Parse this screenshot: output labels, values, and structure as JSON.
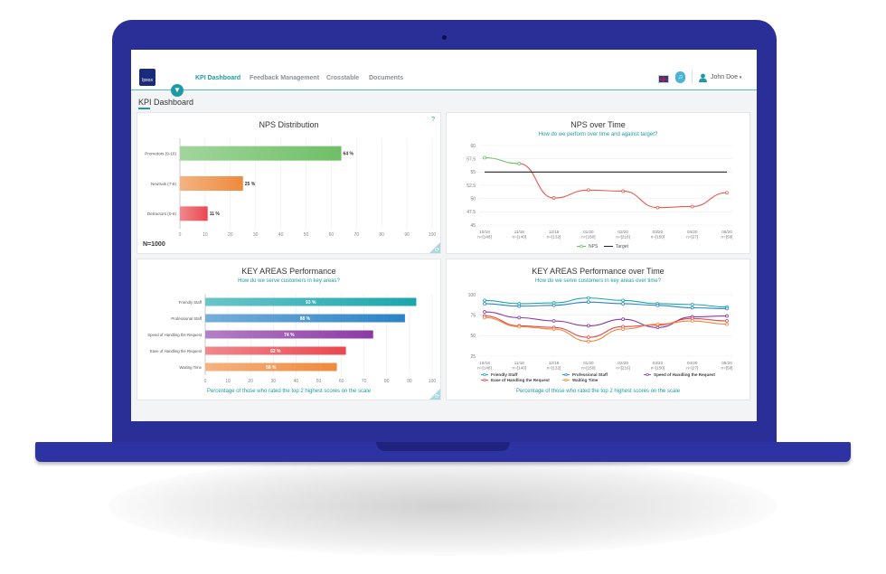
{
  "app": {
    "logo_text": "Ipsos"
  },
  "nav": {
    "items": [
      {
        "label": "KPI Dashboard",
        "active": true
      },
      {
        "label": "Feedback Management",
        "active": false
      },
      {
        "label": "Crosstable",
        "active": false
      },
      {
        "label": "Documents",
        "active": false
      }
    ]
  },
  "header": {
    "user_name": "John Doe",
    "user_caret": "▾",
    "flag_icon": "uk-flag-icon",
    "notification_icon": "bell-icon",
    "notification_glyph": "♫"
  },
  "page": {
    "title": "KPI Dashboard",
    "filter_icon": "filter-icon",
    "filter_glyph": "▼"
  },
  "colors": {
    "accent": "#1e9aa6",
    "laptop": "#2a2f97"
  },
  "panels": {
    "nps_distribution": {
      "title": "NPS Distribution",
      "help": "?",
      "sample": "N=1000"
    },
    "nps_over_time": {
      "title": "NPS over Time",
      "subtitle": "How do we perform over time and against target?"
    },
    "key_areas": {
      "title": "KEY AREAS Performance",
      "subtitle": "How do we serve customers in key areas?",
      "footer": "Percentage of those who rated the top 2 highest scores on the scale"
    },
    "key_areas_time": {
      "title": "KEY AREAS Performance over Time",
      "subtitle": "How do we serve customers in key areas over time?",
      "footer": "Percentage of those who rated the top 2 highest scores on the scale"
    }
  },
  "chart_data": [
    {
      "id": "nps_distribution",
      "type": "bar",
      "orientation": "horizontal",
      "categories": [
        "Promotors (9-10)",
        "Neutrals (7-8)",
        "Detractors (0-6)"
      ],
      "values": [
        64,
        25,
        11
      ],
      "labels": [
        "64 %",
        "25 %",
        "11 %"
      ],
      "colors": [
        "#6fbf67",
        "#ee8a3c",
        "#e8484f"
      ],
      "xlim": [
        0,
        100
      ],
      "xticks": [
        "0",
        "10",
        "20",
        "30",
        "40",
        "50",
        "60",
        "70",
        "80",
        "90",
        "100"
      ],
      "grid": true
    },
    {
      "id": "nps_over_time",
      "type": "line",
      "x": [
        "10/18\nn=[148]",
        "11/18\nn=[140]",
        "12/18\nn=[132]",
        "01/20\nn=[150]",
        "02/20\nn=[216]",
        "03/20\nn=[150]",
        "04/20\nn=[27]",
        "05/20\nn=[58]"
      ],
      "series": [
        {
          "name": "NPS",
          "values": [
            57.7,
            56.6,
            50.1,
            51.6,
            51.4,
            48.3,
            48.5,
            51.1
          ]
        },
        {
          "name": "Target",
          "values": [
            55,
            55,
            55,
            55,
            55,
            55,
            55,
            55
          ]
        }
      ],
      "ylim": [
        45,
        60
      ],
      "yticks": [
        "45",
        "47.5",
        "50",
        "52.5",
        "55",
        "57.5",
        "60"
      ],
      "legend": "bottom"
    },
    {
      "id": "key_areas",
      "type": "bar",
      "orientation": "horizontal",
      "categories": [
        "Friendly Staff",
        "Professional Staff",
        "Speed of Handling the Request",
        "Ease of Handling the Request",
        "Waiting Time"
      ],
      "values": [
        93,
        88,
        74,
        62,
        58
      ],
      "labels": [
        "93 %",
        "88 %",
        "74 %",
        "62 %",
        "58 %"
      ],
      "colors": [
        "#1aa6ac",
        "#2b83c6",
        "#8c3aa5",
        "#e8484f",
        "#ee8a3c"
      ],
      "xlim": [
        0,
        100
      ],
      "xticks": [
        "0",
        "10",
        "20",
        "30",
        "40",
        "50",
        "60",
        "70",
        "80",
        "90",
        "100"
      ],
      "grid": true
    },
    {
      "id": "key_areas_time",
      "type": "line",
      "x": [
        "10/18\nn=[148]",
        "11/18\nn=[140]",
        "12/18\nn=[132]",
        "01/20\nn=[150]",
        "02/20\nn=[216]",
        "03/20\nn=[150]",
        "04/20\nn=[27]",
        "05/20\nn=[58]"
      ],
      "series": [
        {
          "name": "Friendly Staff",
          "values": [
            93,
            89,
            90,
            96,
            93,
            89,
            88,
            85
          ]
        },
        {
          "name": "Professional Staff",
          "values": [
            89,
            86,
            87,
            91,
            89,
            87,
            84,
            83
          ]
        },
        {
          "name": "Speed of Handling the Request",
          "values": [
            79,
            72,
            68,
            62,
            70,
            60,
            73,
            74
          ]
        },
        {
          "name": "Ease of Handling the Request",
          "values": [
            74,
            62,
            60,
            48,
            61,
            63,
            71,
            68
          ]
        },
        {
          "name": "Waiting Time",
          "values": [
            72,
            61,
            58,
            43,
            58,
            64,
            68,
            64
          ]
        }
      ],
      "colors": [
        "#1aa6ac",
        "#2b83c6",
        "#8c3aa5",
        "#e8484f",
        "#ee8a3c"
      ],
      "ylim": [
        25,
        100
      ],
      "yticks": [
        "25",
        "50",
        "75",
        "100"
      ],
      "legend": "bottom"
    }
  ]
}
